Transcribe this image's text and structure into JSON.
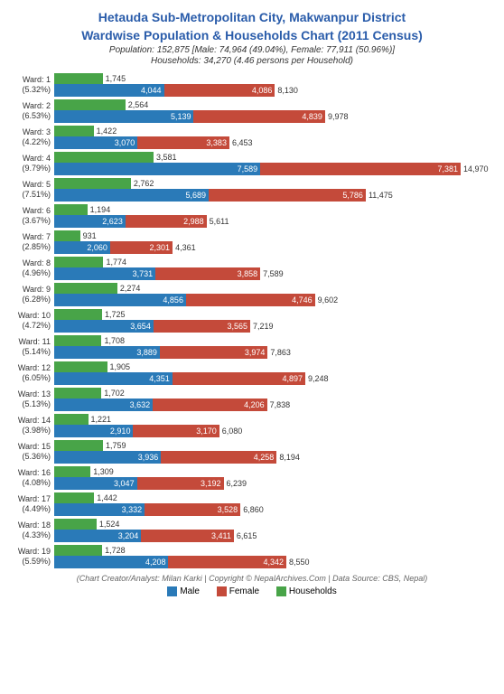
{
  "title_line1": "Hetauda Sub-Metropolitan City, Makwanpur District",
  "title_line2": "Wardwise Population & Households Chart (2011 Census)",
  "subtitle_line1": "Population: 152,875 [Male: 74,964 (49.04%), Female: 77,911 (50.96%)]",
  "subtitle_line2": "Households: 34,270 (4.46 persons per Household)",
  "footer": "(Chart Creator/Analyst: Milan Karki | Copyright © NepalArchives.Com | Data Source: CBS, Nepal)",
  "legend": {
    "male": "Male",
    "female": "Female",
    "households": "Households"
  },
  "colors": {
    "male": "#2a7ab8",
    "female": "#c44a3a",
    "households": "#48a448",
    "title": "#2a5caa",
    "background": "#ffffff"
  },
  "chart": {
    "max_population": 14970,
    "max_households": 3581,
    "bar_area_width": 450,
    "household_bar_max_width": 110
  },
  "wards": [
    {
      "ward": 1,
      "pct": "5.32%",
      "households": 1745,
      "male": 4044,
      "female": 4086,
      "total": 8130
    },
    {
      "ward": 2,
      "pct": "6.53%",
      "households": 2564,
      "male": 5139,
      "female": 4839,
      "total": 9978
    },
    {
      "ward": 3,
      "pct": "4.22%",
      "households": 1422,
      "male": 3070,
      "female": 3383,
      "total": 6453
    },
    {
      "ward": 4,
      "pct": "9.79%",
      "households": 3581,
      "male": 7589,
      "female": 7381,
      "total": 14970
    },
    {
      "ward": 5,
      "pct": "7.51%",
      "households": 2762,
      "male": 5689,
      "female": 5786,
      "total": 11475
    },
    {
      "ward": 6,
      "pct": "3.67%",
      "households": 1194,
      "male": 2623,
      "female": 2988,
      "total": 5611
    },
    {
      "ward": 7,
      "pct": "2.85%",
      "households": 931,
      "male": 2060,
      "female": 2301,
      "total": 4361
    },
    {
      "ward": 8,
      "pct": "4.96%",
      "households": 1774,
      "male": 3731,
      "female": 3858,
      "total": 7589
    },
    {
      "ward": 9,
      "pct": "6.28%",
      "households": 2274,
      "male": 4856,
      "female": 4746,
      "total": 9602
    },
    {
      "ward": 10,
      "pct": "4.72%",
      "households": 1725,
      "male": 3654,
      "female": 3565,
      "total": 7219
    },
    {
      "ward": 11,
      "pct": "5.14%",
      "households": 1708,
      "male": 3889,
      "female": 3974,
      "total": 7863
    },
    {
      "ward": 12,
      "pct": "6.05%",
      "households": 1905,
      "male": 4351,
      "female": 4897,
      "total": 9248
    },
    {
      "ward": 13,
      "pct": "5.13%",
      "households": 1702,
      "male": 3632,
      "female": 4206,
      "total": 7838
    },
    {
      "ward": 14,
      "pct": "3.98%",
      "households": 1221,
      "male": 2910,
      "female": 3170,
      "total": 6080
    },
    {
      "ward": 15,
      "pct": "5.36%",
      "households": 1759,
      "male": 3936,
      "female": 4258,
      "total": 8194
    },
    {
      "ward": 16,
      "pct": "4.08%",
      "households": 1309,
      "male": 3047,
      "female": 3192,
      "total": 6239
    },
    {
      "ward": 17,
      "pct": "4.49%",
      "households": 1442,
      "male": 3332,
      "female": 3528,
      "total": 6860
    },
    {
      "ward": 18,
      "pct": "4.33%",
      "households": 1524,
      "male": 3204,
      "female": 3411,
      "total": 6615
    },
    {
      "ward": 19,
      "pct": "5.59%",
      "households": 1728,
      "male": 4208,
      "female": 4342,
      "total": 8550
    }
  ]
}
